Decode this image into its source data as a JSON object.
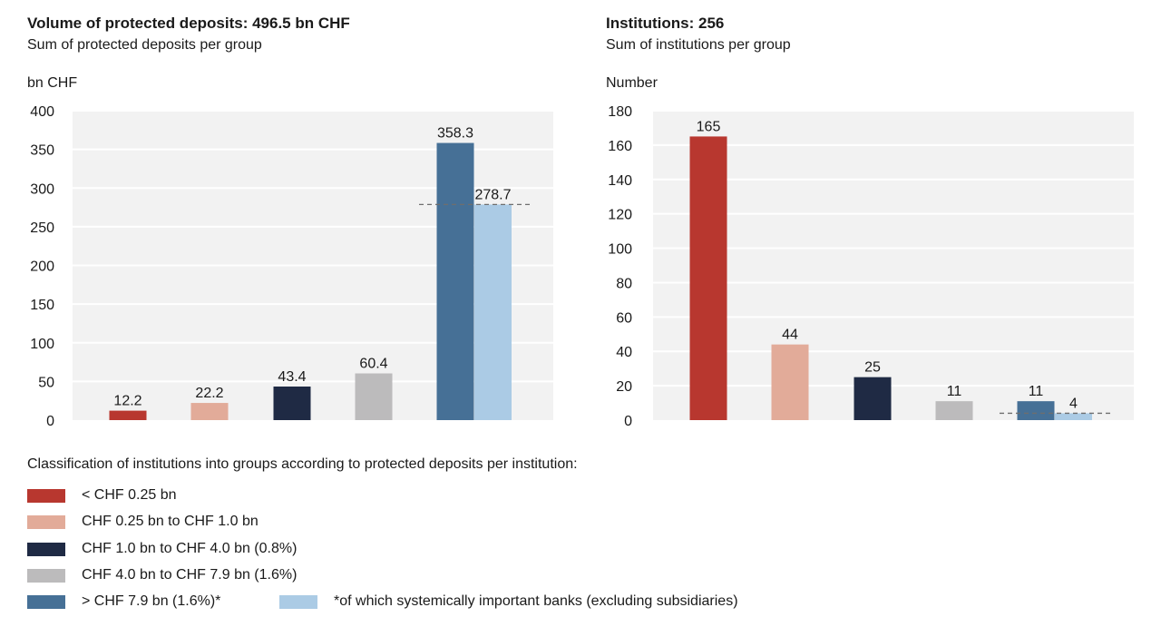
{
  "colors": {
    "group1": "#b8372f",
    "group2": "#e2ab99",
    "group3": "#1f2a44",
    "group4": "#bcbbbc",
    "group5": "#467096",
    "sib": "#abcbe5",
    "plot_bg": "#f2f2f2",
    "grid": "#ffffff"
  },
  "left": {
    "title": "Volume of protected deposits: 496.5 bn CHF",
    "subtitle": "Sum of protected deposits per group",
    "unit": "bn CHF"
  },
  "right": {
    "title": "Institutions: 256",
    "subtitle": "Sum of institutions per group",
    "unit": "Number"
  },
  "legend": {
    "heading": "Classification of institutions into groups according to protected deposits per institution:",
    "items": [
      {
        "label": "< CHF 0.25 bn",
        "color": "#b8372f"
      },
      {
        "label": "CHF 0.25 bn to CHF 1.0 bn",
        "color": "#e2ab99"
      },
      {
        "label": "CHF 1.0 bn to CHF 4.0 bn (0.8%)",
        "color": "#1f2a44"
      },
      {
        "label": "CHF 4.0 bn to CHF 7.9 bn (1.6%)",
        "color": "#bcbbbc"
      },
      {
        "label": "> CHF 7.9 bn (1.6%)*",
        "color": "#467096"
      },
      {
        "label": "*of which systemically important banks (excluding subsidiaries)",
        "color": "#abcbe5"
      }
    ]
  },
  "chart_data": [
    {
      "type": "bar",
      "title": "Volume of protected deposits: 496.5 bn CHF",
      "subtitle": "Sum of protected deposits per group",
      "ylabel": "bn CHF",
      "ylim": [
        0,
        400
      ],
      "yticks": [
        0,
        50,
        100,
        150,
        200,
        250,
        300,
        350,
        400
      ],
      "groups": [
        "< CHF 0.25 bn",
        "CHF 0.25 bn to CHF 1.0 bn",
        "CHF 1.0 bn to CHF 4.0 bn",
        "CHF 4.0 bn to CHF 7.9 bn",
        "> CHF 7.9 bn"
      ],
      "values": [
        12.2,
        22.2,
        43.4,
        60.4,
        358.3
      ],
      "labels": [
        "12.2",
        "22.2",
        "43.4",
        "60.4",
        "358.3"
      ],
      "sib": {
        "value": 278.7,
        "label": "278.7",
        "reference_line": 278.7
      }
    },
    {
      "type": "bar",
      "title": "Institutions: 256",
      "subtitle": "Sum of institutions per group",
      "ylabel": "Number",
      "ylim": [
        0,
        180
      ],
      "yticks": [
        0,
        20,
        40,
        60,
        80,
        100,
        120,
        140,
        160,
        180
      ],
      "groups": [
        "< CHF 0.25 bn",
        "CHF 0.25 bn to CHF 1.0 bn",
        "CHF 1.0 bn to CHF 4.0 bn",
        "CHF 4.0 bn to CHF 7.9 bn",
        "> CHF 7.9 bn"
      ],
      "values": [
        165,
        44,
        25,
        11,
        11
      ],
      "labels": [
        "165",
        "44",
        "25",
        "11",
        "11"
      ],
      "sib": {
        "value": 4,
        "label": "4",
        "reference_line": 4
      }
    }
  ]
}
